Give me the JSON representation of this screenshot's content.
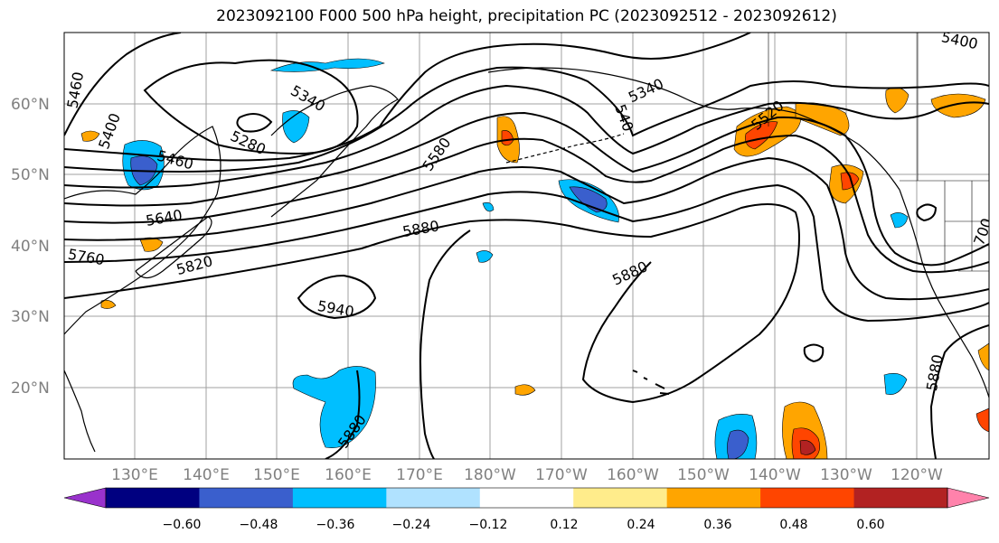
{
  "title": "2023092100 F000 500 hPa height, precipitation PC (2023092512 - 2023092612)",
  "lat_labels": [
    "60°N",
    "50°N",
    "40°N",
    "30°N",
    "20°N"
  ],
  "lon_labels": [
    "130°E",
    "140°E",
    "150°E",
    "160°E",
    "170°E",
    "180°W",
    "170°W",
    "160°W",
    "150°W",
    "140°W",
    "130°W",
    "120°W"
  ],
  "contour_labels": [
    "5460",
    "5400",
    "5340",
    "5280",
    "5460",
    "5640",
    "5760",
    "5820",
    "5580",
    "5880",
    "5940",
    "5880",
    "5880",
    "5340",
    "5400",
    "5880",
    "5520",
    "540",
    "700",
    "5880"
  ],
  "colorbar": {
    "ticks": [
      "−0.60",
      "−0.48",
      "−0.36",
      "−0.24",
      "−0.12",
      "0.12",
      "0.24",
      "0.36",
      "0.48",
      "0.60"
    ],
    "colors": [
      "#9932cc",
      "#000080",
      "#3a5fcd",
      "#00bfff",
      "#b0e2ff",
      "#ffffff",
      "#ffec8b",
      "#ffa500",
      "#ff4500",
      "#b22222",
      "#ff82ab"
    ]
  }
}
